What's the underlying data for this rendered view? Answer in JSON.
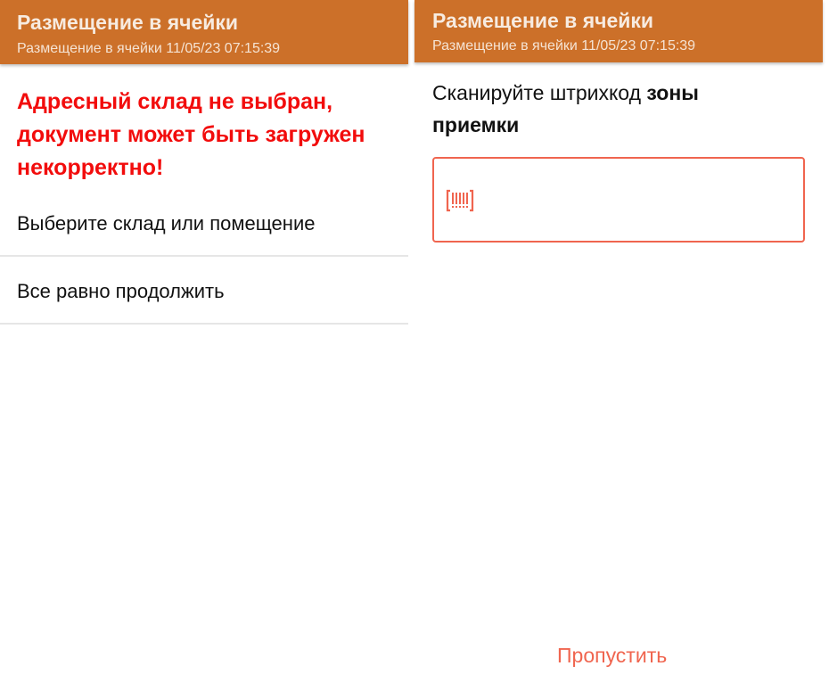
{
  "left_screen": {
    "header": {
      "title": "Размещение в ячейки",
      "subtitle": "Размещение в ячейки 11/05/23 07:15:39"
    },
    "warning": "Адресный склад не выбран, документ может быть загружен некорректно!",
    "options": [
      {
        "label": "Выберите склад или помещение"
      },
      {
        "label": "Все равно продолжить"
      }
    ]
  },
  "right_screen": {
    "header": {
      "title": "Размещение в ячейки",
      "subtitle": "Размещение в ячейки 11/05/23 07:15:39"
    },
    "prompt_prefix": "Сканируйте штрихкод ",
    "prompt_bold": "зоны приемки",
    "barcode_input": {
      "value": "",
      "icon": "barcode-scan-icon"
    },
    "skip_label": "Пропустить"
  },
  "colors": {
    "header": "#cc7029",
    "warning": "#f20c0c",
    "accent": "#f0654f"
  }
}
